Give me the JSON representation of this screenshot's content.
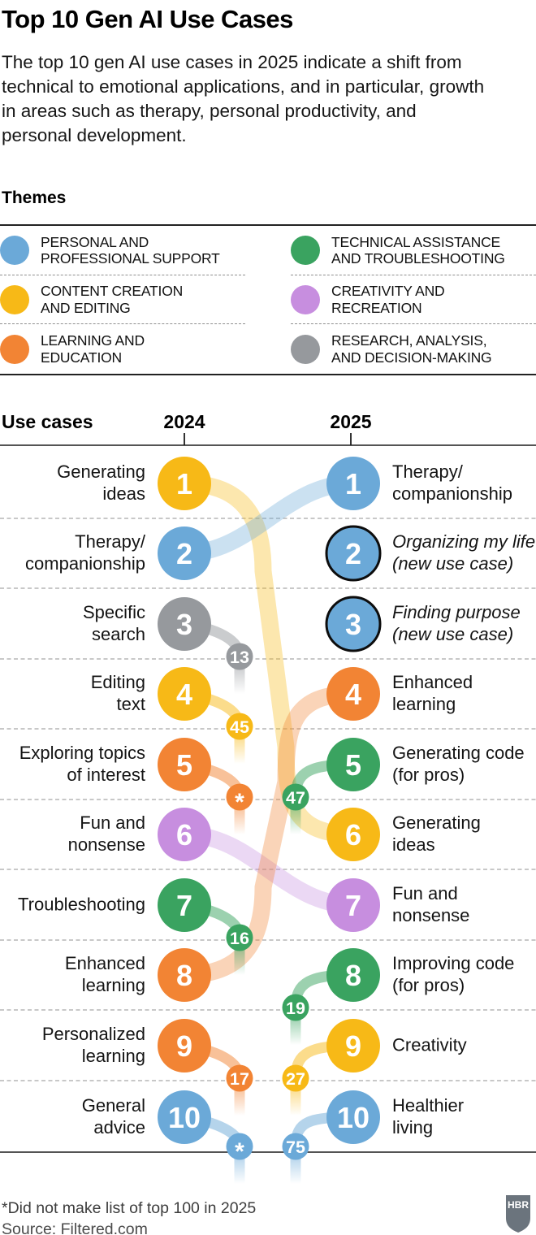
{
  "title": "Top 10 Gen AI Use Cases",
  "subtitle": "The top 10 gen AI use cases in 2025 indicate a shift from technical to emotional applications, and in particular, growth in areas such as therapy, personal productivity, and personal development.",
  "themes": {
    "heading": "Themes",
    "items": [
      {
        "key": "personal",
        "label": "PERSONAL AND\nPROFESSIONAL SUPPORT",
        "color": "#6BA9D8"
      },
      {
        "key": "content",
        "label": "CONTENT CREATION\nAND EDITING",
        "color": "#F7B917"
      },
      {
        "key": "learning",
        "label": "LEARNING AND\nEDUCATION",
        "color": "#F28434"
      },
      {
        "key": "technical",
        "label": "TECHNICAL ASSISTANCE\nAND TROUBLESHOOTING",
        "color": "#3AA360"
      },
      {
        "key": "creativity",
        "label": "CREATIVITY AND\nRECREATION",
        "color": "#C78EDF"
      },
      {
        "key": "research",
        "label": "RESEARCH, ANALYSIS,\nAND DECISION-MAKING",
        "color": "#96999D"
      }
    ]
  },
  "chart_header": {
    "use_cases": "Use cases",
    "year_left": "2024",
    "year_right": "2025"
  },
  "chart_data": {
    "type": "slope-rank",
    "columns": [
      "2024",
      "2025"
    ],
    "rows_2024": [
      {
        "rank": 1,
        "label": "Generating\nideas",
        "theme": "content",
        "moved_to_2025": 6
      },
      {
        "rank": 2,
        "label": "Therapy/\ncompanionship",
        "theme": "personal",
        "moved_to_2025": 1
      },
      {
        "rank": 3,
        "label": "Specific\nsearch",
        "theme": "research",
        "moved_to_2025": "13"
      },
      {
        "rank": 4,
        "label": "Editing\ntext",
        "theme": "content",
        "moved_to_2025": "45"
      },
      {
        "rank": 5,
        "label": "Exploring topics\nof interest",
        "theme": "learning",
        "moved_to_2025": "*"
      },
      {
        "rank": 6,
        "label": "Fun and\nnonsense",
        "theme": "creativity",
        "moved_to_2025": 7
      },
      {
        "rank": 7,
        "label": "Troubleshooting",
        "theme": "technical",
        "moved_to_2025": "16"
      },
      {
        "rank": 8,
        "label": "Enhanced\nlearning",
        "theme": "learning",
        "moved_to_2025": 4
      },
      {
        "rank": 9,
        "label": "Personalized\nlearning",
        "theme": "learning",
        "moved_to_2025": "17"
      },
      {
        "rank": 10,
        "label": "General\nadvice",
        "theme": "personal",
        "moved_to_2025": "*"
      }
    ],
    "rows_2025": [
      {
        "rank": 1,
        "label": "Therapy/\ncompanionship",
        "theme": "personal",
        "from_2024": 2
      },
      {
        "rank": 2,
        "label": "Organizing my life\n(new use case)",
        "theme": "personal",
        "new_use_case": true
      },
      {
        "rank": 3,
        "label": "Finding purpose\n(new use case)",
        "theme": "personal",
        "new_use_case": true
      },
      {
        "rank": 4,
        "label": "Enhanced\nlearning",
        "theme": "learning",
        "from_2024": 8
      },
      {
        "rank": 5,
        "label": "Generating code\n(for pros)",
        "theme": "technical",
        "from_2024": "47"
      },
      {
        "rank": 6,
        "label": "Generating\nideas",
        "theme": "content",
        "from_2024": 1
      },
      {
        "rank": 7,
        "label": "Fun and\nnonsense",
        "theme": "creativity",
        "from_2024": 6
      },
      {
        "rank": 8,
        "label": "Improving code\n(for pros)",
        "theme": "technical",
        "from_2024": "19"
      },
      {
        "rank": 9,
        "label": "Creativity",
        "theme": "content",
        "from_2024": "27"
      },
      {
        "rank": 10,
        "label": "Healthier\nliving",
        "theme": "personal",
        "from_2024": "75"
      }
    ]
  },
  "footnote": "*Did not make list of top 100 in 2025",
  "source": "Source: Filtered.com",
  "logo_text": "HBR"
}
